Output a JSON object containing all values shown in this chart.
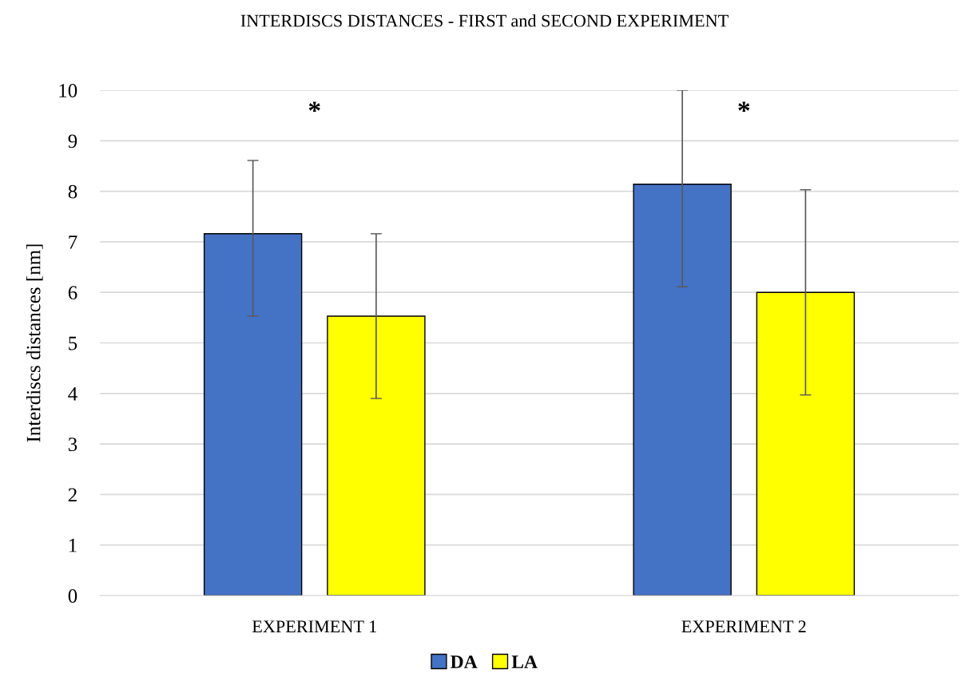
{
  "chart_data": {
    "type": "bar",
    "title": "INTERDISCS DISTANCES - FIRST and SECOND EXPERIMENT",
    "ylabel": "Interdiscs distances [nm]",
    "categories": [
      "EXPERIMENT 1",
      "EXPERIMENT 2"
    ],
    "series": [
      {
        "name": "DA",
        "color": "#4472c4",
        "values": [
          7.16,
          8.14
        ],
        "errors": [
          [
            5.53,
            8.61
          ],
          [
            6.11,
            10.0
          ]
        ]
      },
      {
        "name": "LA",
        "color": "#ffff00",
        "values": [
          5.53,
          6.0
        ],
        "errors": [
          [
            3.9,
            7.16
          ],
          [
            3.97,
            8.03
          ]
        ]
      }
    ],
    "ylim": [
      0,
      10
    ],
    "yticks": [
      0,
      1,
      2,
      3,
      4,
      5,
      6,
      7,
      8,
      9,
      10
    ],
    "grid": "y",
    "legend": "bottom",
    "annotations": [
      "*",
      "*"
    ]
  }
}
